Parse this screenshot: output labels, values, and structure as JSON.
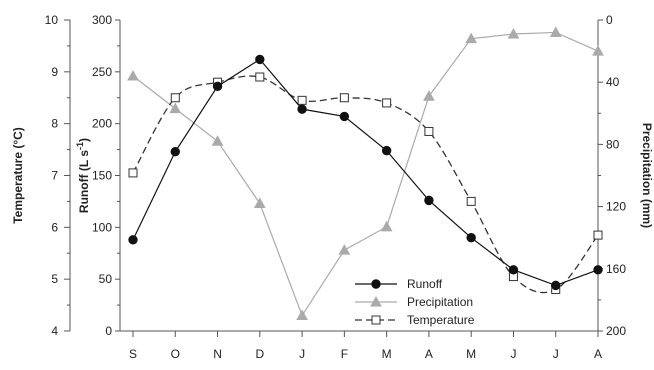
{
  "chart_data": {
    "type": "line",
    "categories": [
      "S",
      "O",
      "N",
      "D",
      "J",
      "F",
      "M",
      "A",
      "M",
      "J",
      "J",
      "A"
    ],
    "axes": {
      "temperature": {
        "label": "Temperature (°C)",
        "range": [
          4,
          10
        ],
        "ticks": [
          4,
          5,
          6,
          7,
          8,
          9,
          10
        ]
      },
      "runoff": {
        "label": "Runoff (L s",
        "label_sup": "-1",
        "label_end": ")",
        "range": [
          0,
          300
        ],
        "ticks": [
          0,
          50,
          100,
          150,
          200,
          250,
          300
        ]
      },
      "precipitation": {
        "label": "Precipitation (mm)",
        "range": [
          0,
          200
        ],
        "reversed": true,
        "ticks": [
          0,
          40,
          80,
          120,
          160,
          200
        ]
      }
    },
    "series": [
      {
        "name": "Runoff",
        "axis": "runoff",
        "style": "solid",
        "marker": "filled-circle",
        "color": "#111111",
        "values": [
          88,
          173,
          236,
          262,
          214,
          207,
          174,
          126,
          90,
          59,
          44,
          59
        ]
      },
      {
        "name": "Precipitation",
        "axis": "precipitation",
        "style": "solid",
        "marker": "filled-triangle",
        "color": "#aaaaaa",
        "values": [
          36,
          57,
          78,
          118,
          190,
          148,
          133,
          49,
          12,
          9,
          8,
          20
        ]
      },
      {
        "name": "Temperature",
        "axis": "temperature",
        "style": "dashed",
        "marker": "open-square",
        "color": "#333333",
        "values": [
          7.05,
          8.5,
          8.8,
          8.9,
          8.45,
          8.5,
          8.4,
          7.85,
          6.5,
          5.05,
          4.8,
          5.85
        ]
      }
    ],
    "legend": {
      "position": "bottom-center",
      "entries": [
        "Runoff",
        "Precipitation",
        "Temperature"
      ]
    },
    "grid": false
  }
}
